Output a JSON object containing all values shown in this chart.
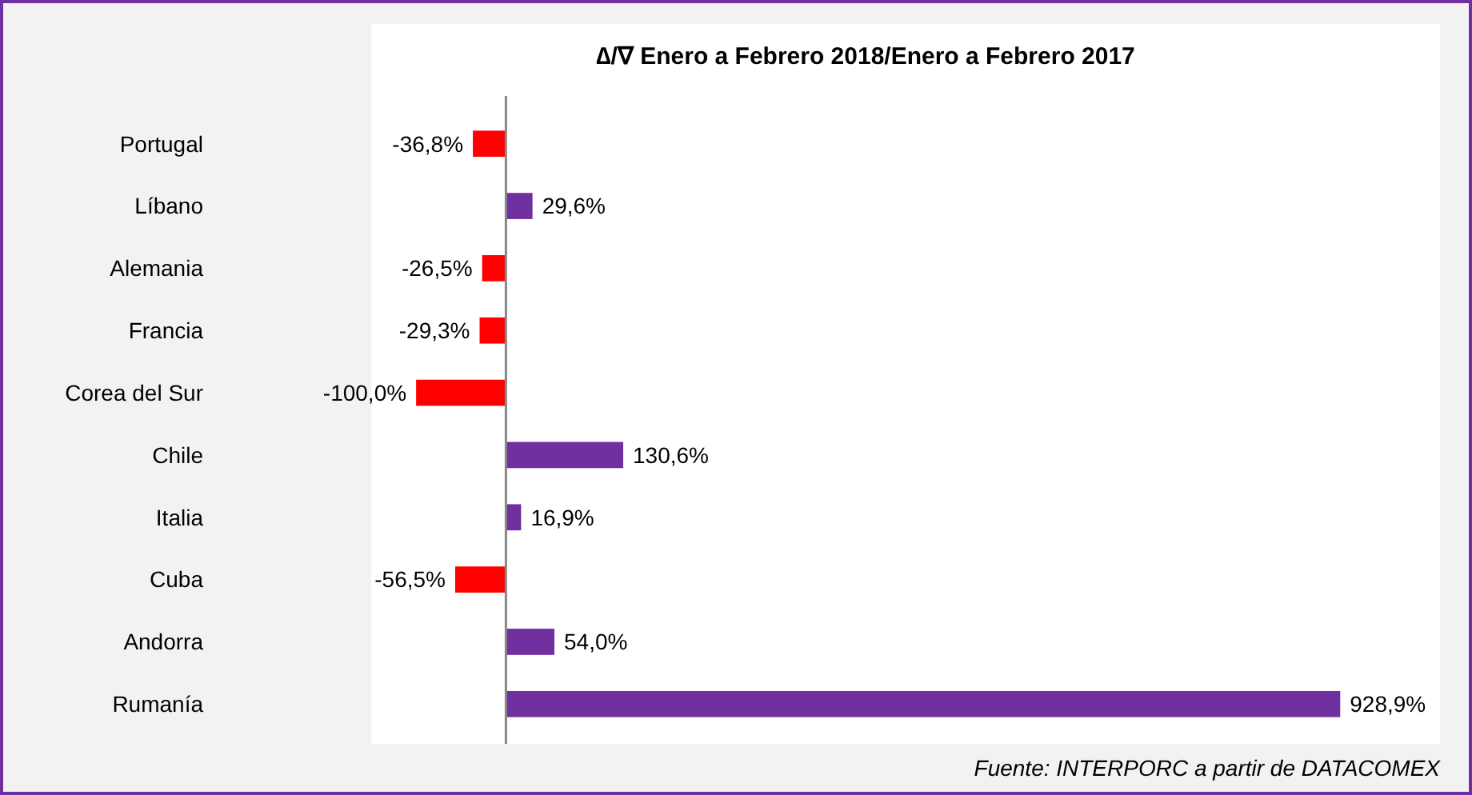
{
  "chart_data": {
    "type": "bar",
    "orientation": "horizontal",
    "title": "∆/∇  Enero a Febrero 2018/Enero a Febrero 2017",
    "categories": [
      "Portugal",
      "Líbano",
      "Alemania",
      "Francia",
      "Corea del Sur",
      "Chile",
      "Italia",
      "Cuba",
      "Andorra",
      "Rumanía"
    ],
    "values": [
      -36.8,
      29.6,
      -26.5,
      -29.3,
      -100.0,
      130.6,
      16.9,
      -56.5,
      54.0,
      928.9
    ],
    "colors": [
      "#ff0000",
      "#7030a0",
      "#ff0000",
      "#ff0000",
      "#ff0000",
      "#7030a0",
      "#7030a0",
      "#ff0000",
      "#7030a0",
      "#7030a0"
    ],
    "value_labels": [
      "-36,8%",
      "29,6%",
      "-26,5%",
      "-29,3%",
      "-100,0%",
      "130,6%",
      "16,9%",
      "-56,5%",
      "54,0%",
      "928,9%"
    ],
    "xlim": [
      -150,
      1040
    ],
    "tick_labels": "y",
    "annotations": [
      "Fuente: INTERPORC  a partir de DATACOMEX"
    ]
  }
}
